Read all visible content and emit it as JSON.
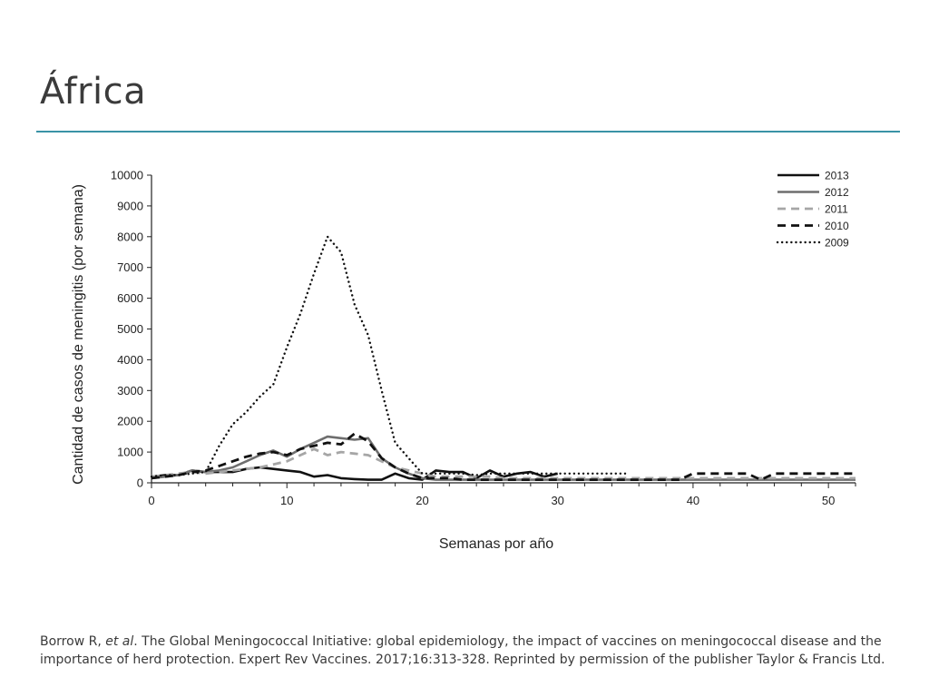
{
  "slide": {
    "title": "África",
    "rule_color": "#3a93a6"
  },
  "citation": {
    "author": "Borrow R, ",
    "etal": "et al",
    "text": ". The Global Meningococcal Initiative: global epidemiology, the impact of vaccines on meningococcal disease and the importance of herd protection. Expert Rev Vaccines. 2017;16:313-328. Reprinted by permission of the publisher Taylor & Francis Ltd."
  },
  "chart_data": {
    "type": "line",
    "xlabel": "Semanas por año",
    "ylabel": "Cantidad de casos de meningitis (por semana)",
    "xlim": [
      0,
      52
    ],
    "ylim": [
      0,
      10000
    ],
    "xticks": [
      0,
      10,
      20,
      30,
      40,
      50
    ],
    "yticks": [
      0,
      1000,
      2000,
      3000,
      4000,
      5000,
      6000,
      7000,
      8000,
      9000,
      10000
    ],
    "legend_position": "top-right",
    "grid": false,
    "series": [
      {
        "name": "2013",
        "style": "solid-black",
        "x": [
          0,
          1,
          2,
          3,
          4,
          5,
          6,
          7,
          8,
          9,
          10,
          11,
          12,
          13,
          14,
          15,
          16,
          17,
          18,
          19,
          20,
          21,
          22,
          23,
          24,
          25,
          26,
          27,
          28,
          29,
          30
        ],
        "y": [
          200,
          250,
          250,
          400,
          350,
          350,
          350,
          450,
          500,
          450,
          400,
          350,
          200,
          250,
          150,
          120,
          100,
          100,
          300,
          150,
          100,
          400,
          350,
          350,
          150,
          400,
          200,
          300,
          350,
          200,
          300
        ]
      },
      {
        "name": "2012",
        "style": "solid-gray",
        "x": [
          0,
          1,
          2,
          3,
          4,
          5,
          6,
          7,
          8,
          9,
          10,
          11,
          12,
          13,
          14,
          15,
          16,
          17,
          18,
          19,
          20,
          21,
          22,
          23,
          24,
          25,
          26,
          27,
          28,
          29,
          30,
          31,
          32,
          33,
          34,
          35,
          36,
          37,
          38,
          39,
          40,
          41,
          42,
          43,
          44,
          45,
          46,
          47,
          48,
          49,
          50,
          51,
          52
        ],
        "y": [
          150,
          200,
          250,
          400,
          350,
          400,
          500,
          700,
          900,
          1050,
          850,
          1100,
          1300,
          1500,
          1450,
          1400,
          1450,
          800,
          500,
          300,
          150,
          100,
          100,
          100,
          100,
          100,
          100,
          100,
          100,
          100,
          100,
          100,
          100,
          100,
          100,
          100,
          100,
          100,
          100,
          100,
          100,
          100,
          100,
          100,
          100,
          100,
          100,
          100,
          100,
          100,
          100,
          100,
          100
        ]
      },
      {
        "name": "2011",
        "style": "dashed-gray",
        "x": [
          0,
          1,
          2,
          3,
          4,
          5,
          6,
          7,
          8,
          9,
          10,
          11,
          12,
          13,
          14,
          15,
          16,
          17,
          18,
          19,
          20,
          21,
          22,
          23,
          24,
          25,
          26,
          27,
          28,
          29,
          30,
          31,
          32,
          33,
          34,
          35,
          36,
          37,
          38,
          39,
          40,
          41,
          42,
          43,
          44,
          45,
          46,
          47,
          48,
          49,
          50,
          51,
          52
        ],
        "y": [
          200,
          250,
          300,
          350,
          300,
          350,
          400,
          450,
          500,
          600,
          700,
          900,
          1100,
          900,
          1000,
          950,
          900,
          700,
          500,
          400,
          300,
          200,
          200,
          200,
          200,
          200,
          150,
          150,
          150,
          150,
          150,
          150,
          150,
          150,
          150,
          150,
          150,
          150,
          150,
          150,
          150,
          150,
          150,
          150,
          150,
          150,
          150,
          150,
          150,
          150,
          150,
          150,
          150
        ]
      },
      {
        "name": "2010",
        "style": "dashed-black",
        "x": [
          0,
          1,
          2,
          3,
          4,
          5,
          6,
          7,
          8,
          9,
          10,
          11,
          12,
          13,
          14,
          15,
          16,
          17,
          18,
          19,
          20,
          21,
          22,
          23,
          24,
          25,
          26,
          27,
          28,
          29,
          30,
          31,
          32,
          33,
          34,
          35,
          36,
          37,
          38,
          39,
          40,
          41,
          42,
          43,
          44,
          45,
          46,
          47,
          48,
          49,
          50,
          51,
          52
        ],
        "y": [
          150,
          200,
          250,
          350,
          400,
          550,
          700,
          850,
          950,
          1000,
          900,
          1100,
          1200,
          1300,
          1250,
          1600,
          1350,
          800,
          500,
          300,
          150,
          150,
          150,
          100,
          100,
          100,
          100,
          100,
          100,
          100,
          100,
          100,
          100,
          100,
          100,
          100,
          100,
          100,
          100,
          100,
          300,
          300,
          300,
          300,
          300,
          100,
          300,
          300,
          300,
          300,
          300,
          300,
          300
        ]
      },
      {
        "name": "2009",
        "style": "dotted-black",
        "x": [
          0,
          1,
          2,
          3,
          4,
          5,
          6,
          7,
          8,
          9,
          10,
          11,
          12,
          13,
          14,
          15,
          16,
          17,
          18,
          19,
          20,
          21,
          22,
          23,
          24,
          25,
          26,
          27,
          28,
          29,
          30,
          31,
          32,
          33,
          34,
          35
        ],
        "y": [
          200,
          250,
          250,
          300,
          350,
          1200,
          1900,
          2300,
          2800,
          3200,
          4400,
          5500,
          6800,
          8000,
          7500,
          5800,
          4800,
          3000,
          1300,
          800,
          300,
          300,
          300,
          300,
          250,
          300,
          300,
          300,
          300,
          300,
          300,
          300,
          300,
          300,
          300,
          300
        ]
      }
    ]
  }
}
